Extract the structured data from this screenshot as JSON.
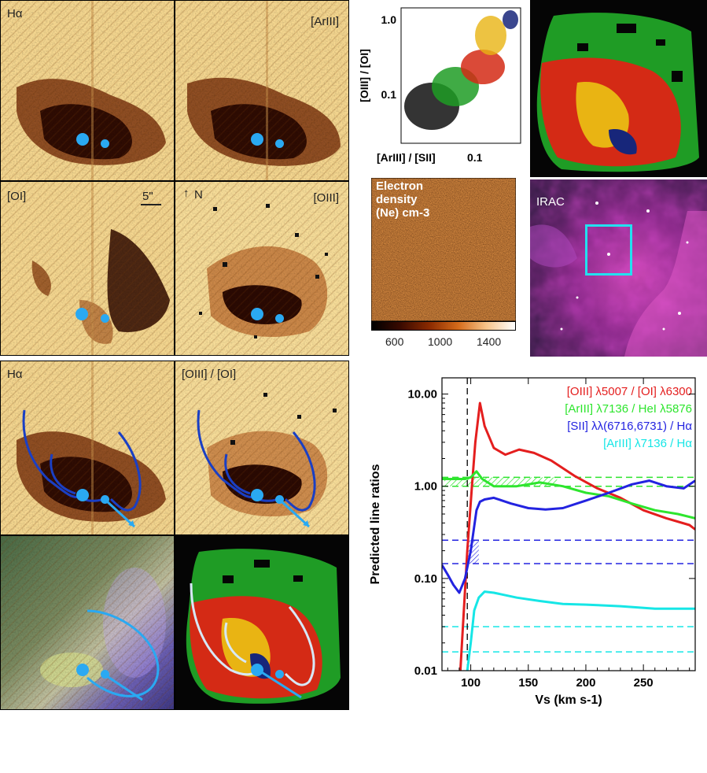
{
  "colors": {
    "orange_light": "#f6d68a",
    "orange_dark": "#3e1507",
    "map_green": "#1f9c25",
    "map_red": "#d42a15",
    "map_yellow": "#e9b413",
    "map_navy": "#17267a",
    "oiii_oi": "#e41e1e",
    "ariii_hei": "#2ee52e",
    "sii_ha": "#2323e0",
    "ariii_ha": "#16e6e6",
    "marker_blue": "#2aa9f2"
  },
  "panels": {
    "ha_top": "Hα",
    "ariii_top": "[ArIII]",
    "oi_left": "[OI]",
    "scale_bar": "5\"",
    "north": "N",
    "oiii_right": "[OIII]",
    "ha_bottom": "Hα",
    "oiii_oi_bottom": "[OIII] / [OI]",
    "irac": "IRAC"
  },
  "density": {
    "title_line1": "Electron",
    "title_line2": "density",
    "title_line3": "(Ne) cm-3",
    "ticks": [
      "600",
      "1000",
      "1400"
    ]
  },
  "scatter": {
    "ylabel": "[OIII] / [OI]",
    "xlabel": "[ArIII] / [SII]",
    "xtick": "0.1",
    "yticks": [
      "1.0",
      "0.1"
    ]
  },
  "chart_data": {
    "type": "line",
    "xlabel": "Vs (km s-1)",
    "ylabel": "Predicted line ratios",
    "xlim": [
      75,
      295
    ],
    "ylim": [
      0.01,
      15
    ],
    "yscale": "log",
    "xticks": [
      100,
      150,
      200,
      250
    ],
    "xtick_labels": [
      "100",
      "150",
      "200",
      "250"
    ],
    "yticks": [
      0.01,
      0.1,
      1,
      10
    ],
    "ytick_labels": [
      "0.01",
      "0.10",
      "1.00",
      "10.00"
    ],
    "vline_x": 97,
    "legend": [
      "[OIII] λ5007 / [OI] λ6300",
      "[ArIII] λ7136 / HeI λ5876",
      "[SII] λλ(6716,6731) / Hα",
      "[ArIII] λ7136 / Hα"
    ],
    "series": [
      {
        "name": "[OIII] λ5007 / [OI] λ6300",
        "color": "#e41e1e",
        "x": [
          91,
          97,
          101,
          104,
          108,
          112,
          120,
          130,
          142,
          155,
          170,
          190,
          210,
          230,
          250,
          270,
          290,
          295
        ],
        "y": [
          0.01,
          0.2,
          1.0,
          3.0,
          8.0,
          4.5,
          2.6,
          2.2,
          2.5,
          2.3,
          1.9,
          1.3,
          0.95,
          0.75,
          0.55,
          0.45,
          0.38,
          0.34
        ]
      },
      {
        "name": "[ArIII] λ7136 / HeI λ5876",
        "color": "#2ee52e",
        "x": [
          75,
          85,
          95,
          100,
          105,
          110,
          120,
          140,
          160,
          180,
          200,
          220,
          240,
          260,
          280,
          295
        ],
        "y": [
          1.2,
          1.2,
          1.2,
          1.25,
          1.45,
          1.2,
          1.0,
          1.0,
          1.1,
          1.0,
          0.85,
          0.78,
          0.65,
          0.55,
          0.5,
          0.45
        ]
      },
      {
        "name": "[SII] λλ(6716,6731) / Hα",
        "color": "#2323e0",
        "x": [
          75,
          80,
          85,
          90,
          95,
          100,
          105,
          108,
          112,
          120,
          135,
          150,
          165,
          180,
          200,
          220,
          240,
          255,
          270,
          285,
          295
        ],
        "y": [
          0.14,
          0.11,
          0.085,
          0.07,
          0.1,
          0.2,
          0.55,
          0.68,
          0.72,
          0.75,
          0.65,
          0.58,
          0.56,
          0.58,
          0.7,
          0.85,
          1.05,
          1.15,
          1.0,
          0.95,
          1.15
        ]
      },
      {
        "name": "[ArIII] λ7136 / Hα",
        "color": "#16e6e6",
        "x": [
          97,
          100,
          103,
          107,
          112,
          120,
          140,
          160,
          180,
          200,
          230,
          260,
          295
        ],
        "y": [
          0.01,
          0.02,
          0.045,
          0.062,
          0.072,
          0.07,
          0.062,
          0.057,
          0.053,
          0.052,
          0.05,
          0.047,
          0.047
        ]
      }
    ],
    "hlines": [
      {
        "y": 1.25,
        "color": "#2ee52e"
      },
      {
        "y": 1.0,
        "color": "#2ee52e"
      },
      {
        "y": 0.26,
        "color": "#2323e0"
      },
      {
        "y": 0.145,
        "color": "#2323e0"
      },
      {
        "y": 0.03,
        "color": "#16e6e6"
      },
      {
        "y": 0.016,
        "color": "#16e6e6"
      }
    ]
  }
}
